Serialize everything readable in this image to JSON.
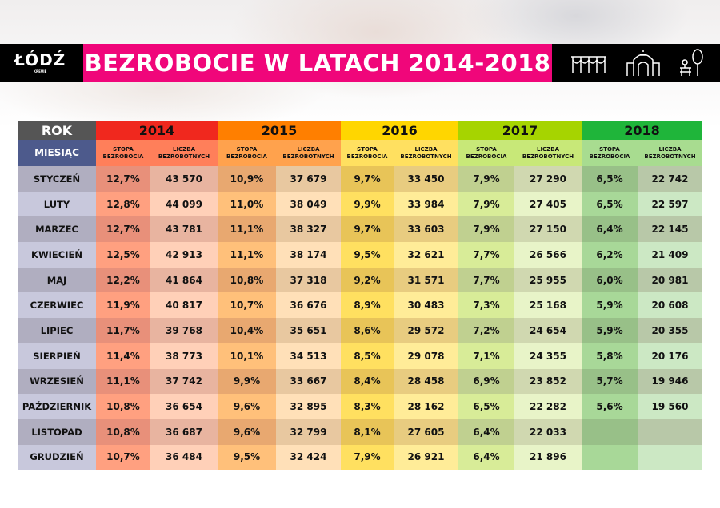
{
  "header": {
    "logo": "ŁÓDŹ",
    "logo_sub": "KREUJE",
    "title": "BEZROBOCIE W LATACH 2014-2018",
    "icons": [
      "arches-icon",
      "palace-gate-icon",
      "park-bench-tree-icon"
    ]
  },
  "chart_data": {
    "type": "table",
    "corner_top": "ROK",
    "corner_bottom": "MIESIĄC",
    "sub_headers": [
      "STOPA BEZROBOCIA",
      "LICZBA BEZROBOTNYCH"
    ],
    "years": [
      {
        "year": "2014",
        "color": "#f0281e",
        "sub": "#ff7f5a",
        "stopa": [
          "#ffa080",
          "#e8907a"
        ],
        "liczba": [
          "#ffd0b8",
          "#e8b4a0"
        ]
      },
      {
        "year": "2015",
        "color": "#ff7f00",
        "sub": "#ffa24d",
        "stopa": [
          "#ffc07a",
          "#e8a870"
        ],
        "liczba": [
          "#ffe0b8",
          "#e8c8a0"
        ]
      },
      {
        "year": "2016",
        "color": "#ffd600",
        "sub": "#ffe060",
        "stopa": [
          "#ffe060",
          "#e8c458"
        ],
        "liczba": [
          "#ffec98",
          "#e8cc80"
        ]
      },
      {
        "year": "2017",
        "color": "#a6d400",
        "sub": "#c8e878",
        "stopa": [
          "#d8ec98",
          "#c0d090"
        ],
        "liczba": [
          "#e8f4c8",
          "#d0d8b0"
        ]
      },
      {
        "year": "2018",
        "color": "#1fb53a",
        "sub": "#a8dc90",
        "stopa": [
          "#a8d898",
          "#98c088"
        ],
        "liczba": [
          "#cce8c4",
          "#b8c8a8"
        ]
      }
    ],
    "rows": [
      {
        "month": "STYCZEŃ",
        "values": [
          "12,7%",
          "43 570",
          "10,9%",
          "37 679",
          "9,7%",
          "33 450",
          "7,9%",
          "27 290",
          "6,5%",
          "22 742"
        ]
      },
      {
        "month": "LUTY",
        "values": [
          "12,8%",
          "44 099",
          "11,0%",
          "38 049",
          "9,9%",
          "33 984",
          "7,9%",
          "27 405",
          "6,5%",
          "22 597"
        ]
      },
      {
        "month": "MARZEC",
        "values": [
          "12,7%",
          "43 781",
          "11,1%",
          "38 327",
          "9,7%",
          "33 603",
          "7,9%",
          "27 150",
          "6,4%",
          "22 145"
        ]
      },
      {
        "month": "KWIECIEŃ",
        "values": [
          "12,5%",
          "42 913",
          "11,1%",
          "38 174",
          "9,5%",
          "32 621",
          "7,7%",
          "26 566",
          "6,2%",
          "21 409"
        ]
      },
      {
        "month": "MAJ",
        "values": [
          "12,2%",
          "41 864",
          "10,8%",
          "37 318",
          "9,2%",
          "31 571",
          "7,7%",
          "25 955",
          "6,0%",
          "20 981"
        ]
      },
      {
        "month": "CZERWIEC",
        "values": [
          "11,9%",
          "40 817",
          "10,7%",
          "36 676",
          "8,9%",
          "30 483",
          "7,3%",
          "25 168",
          "5,9%",
          "20 608"
        ]
      },
      {
        "month": "LIPIEC",
        "values": [
          "11,7%",
          "39 768",
          "10,4%",
          "35 651",
          "8,6%",
          "29 572",
          "7,2%",
          "24 654",
          "5,9%",
          "20 355"
        ]
      },
      {
        "month": "SIERPIEŃ",
        "values": [
          "11,4%",
          "38 773",
          "10,1%",
          "34 513",
          "8,5%",
          "29 078",
          "7,1%",
          "24 355",
          "5,8%",
          "20 176"
        ]
      },
      {
        "month": "WRZESIEŃ",
        "values": [
          "11,1%",
          "37 742",
          "9,9%",
          "33 667",
          "8,4%",
          "28 458",
          "6,9%",
          "23 852",
          "5,7%",
          "19 946"
        ]
      },
      {
        "month": "PAŹDZIERNIK",
        "values": [
          "10,8%",
          "36 654",
          "9,6%",
          "32 895",
          "8,3%",
          "28 162",
          "6,5%",
          "22 282",
          "5,6%",
          "19 560"
        ]
      },
      {
        "month": "LISTOPAD",
        "values": [
          "10,8%",
          "36 687",
          "9,6%",
          "32 799",
          "8,1%",
          "27 605",
          "6,4%",
          "22 033",
          "",
          ""
        ]
      },
      {
        "month": "GRUDZIEŃ",
        "values": [
          "10,7%",
          "36 484",
          "9,5%",
          "32 424",
          "7,9%",
          "26 921",
          "6,4%",
          "21 896",
          "",
          ""
        ]
      }
    ],
    "colors": {
      "corner_top": "#555555",
      "corner_bottom": "#4d5a8c",
      "month_light": "#c8c8dc",
      "month_dark": "#b0aec0"
    }
  }
}
